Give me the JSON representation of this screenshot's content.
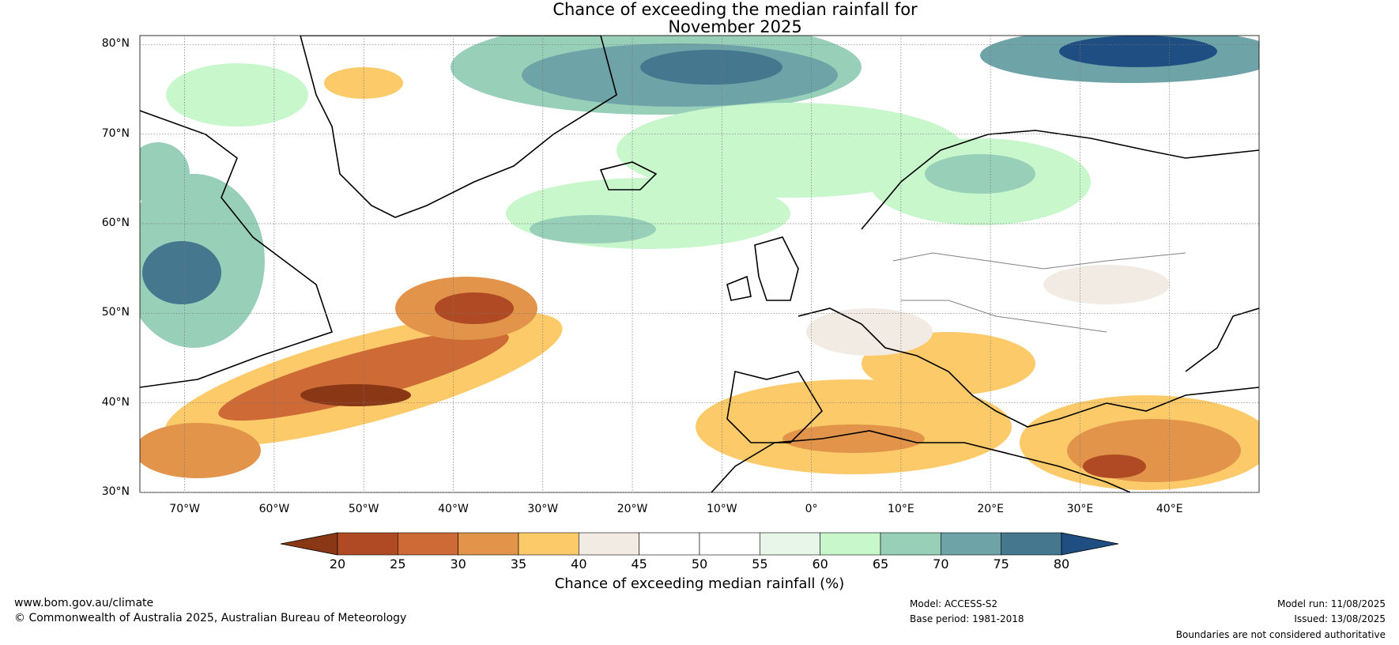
{
  "title_line1": "Chance of exceeding the median rainfall for",
  "title_line2": "November 2025",
  "lat_labels": [
    "80°N",
    "70°N",
    "60°N",
    "50°N",
    "40°N",
    "30°N"
  ],
  "lon_labels": [
    "70°W",
    "60°W",
    "50°W",
    "40°W",
    "30°W",
    "20°W",
    "10°W",
    "0°",
    "10°E",
    "20°E",
    "30°E",
    "40°E"
  ],
  "colorbar": {
    "ticks": [
      "20",
      "25",
      "30",
      "35",
      "40",
      "45",
      "50",
      "55",
      "60",
      "65",
      "70",
      "75",
      "80"
    ],
    "colors": [
      "#8a3716",
      "#b04a25",
      "#cd6a35",
      "#e2944a",
      "#fdca6a",
      "#f2ebe4",
      "#ffffff",
      "#ffffff",
      "#e8f6ea",
      "#c8f7cc",
      "#97cfb9",
      "#6ea3a8",
      "#45778f",
      "#1f4e82"
    ],
    "label": "Chance of exceeding median rainfall (%)"
  },
  "footer": {
    "url": "www.bom.gov.au/climate",
    "copyright": "© Commonwealth of Australia 2025, Australian Bureau of Meteorology",
    "model": "Model: ACCESS-S2",
    "base_period": "Base period: 1981-2018",
    "model_run": "Model run: 11/08/2025",
    "issued": "Issued: 13/08/2025",
    "boundaries": "Boundaries are not considered authoritative"
  }
}
